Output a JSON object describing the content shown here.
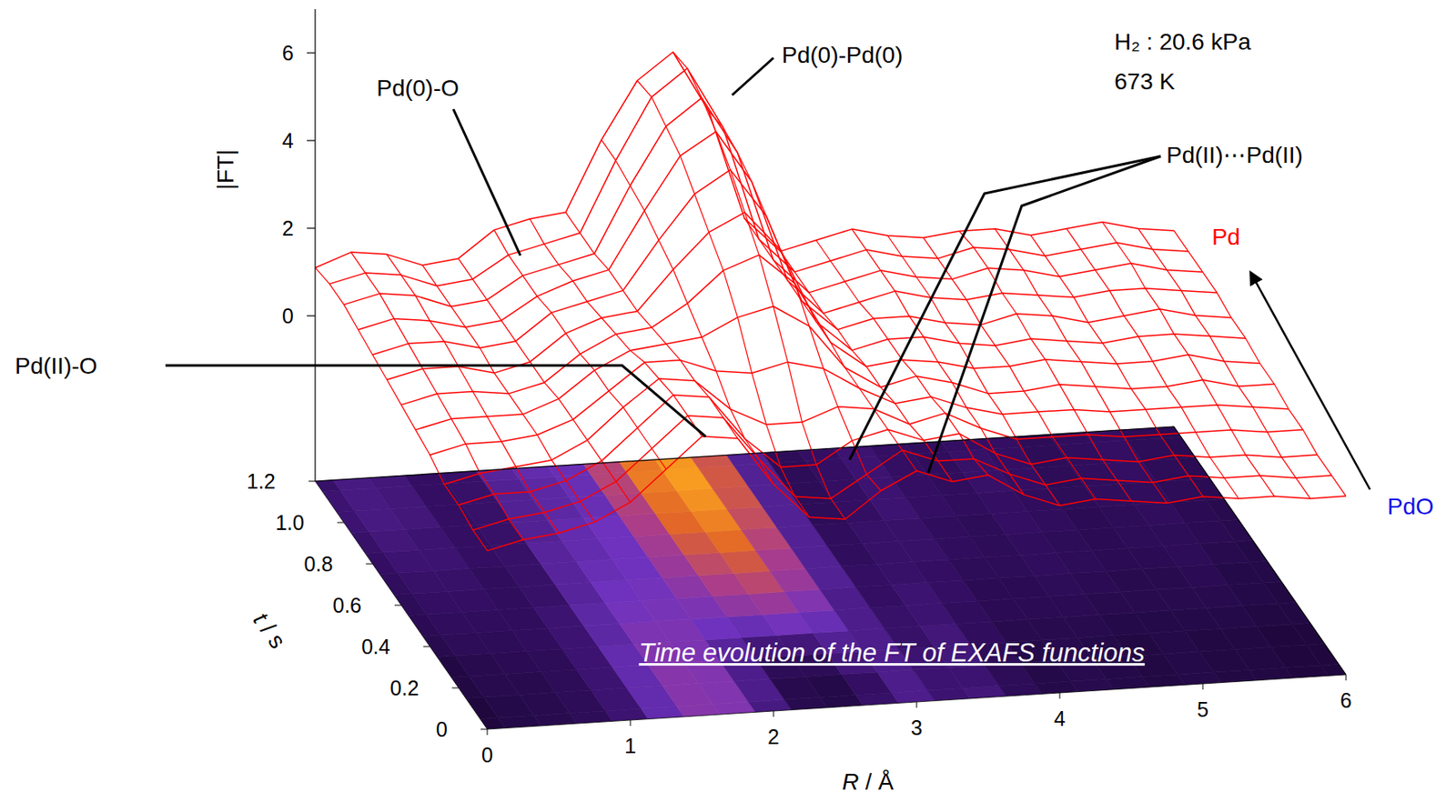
{
  "chart_data": {
    "type": "surface",
    "x_label": "R / Å",
    "y_label": "t / s",
    "z_label": "|FT|",
    "color": "#ff0000",
    "x": [
      0,
      0.25,
      0.5,
      0.75,
      1,
      1.25,
      1.5,
      1.75,
      2,
      2.25,
      2.5,
      2.75,
      3,
      3.25,
      3.5,
      3.75,
      4,
      4.25,
      4.5,
      4.75,
      5,
      5.25,
      5.5,
      5.75,
      6
    ],
    "y": [
      0,
      0.1,
      0.2,
      0.3,
      0.4,
      0.5,
      0.6,
      0.7,
      0.8,
      0.9,
      1,
      1.1,
      1.2
    ],
    "values": [
      [
        0.3,
        0.5,
        0.6,
        0.8,
        1.2,
        1.9,
        2.6,
        2.5,
        1.4,
        0.6,
        0.5,
        1.1,
        1.5,
        1.2,
        1.3,
        0.8,
        0.5,
        0.6,
        0.5,
        0.4,
        0.5,
        0.4,
        0.4,
        0.3,
        0.3
      ],
      [
        0.3,
        0.5,
        0.6,
        0.8,
        1.2,
        1.9,
        2.6,
        2.5,
        1.5,
        0.6,
        0.5,
        1.0,
        1.5,
        1.2,
        1.2,
        0.8,
        0.5,
        0.6,
        0.5,
        0.4,
        0.5,
        0.4,
        0.4,
        0.3,
        0.3
      ],
      [
        0.4,
        0.6,
        0.6,
        0.8,
        1.2,
        1.9,
        2.6,
        2.5,
        1.5,
        0.8,
        0.8,
        1.3,
        1.5,
        1.2,
        1.3,
        0.8,
        0.5,
        0.6,
        0.5,
        0.4,
        0.5,
        0.4,
        0.4,
        0.3,
        0.3
      ],
      [
        0.4,
        0.6,
        0.7,
        0.8,
        1.2,
        1.9,
        2.5,
        2.4,
        1.7,
        1.3,
        1.3,
        1.6,
        1.5,
        1.1,
        1.3,
        0.9,
        0.6,
        0.6,
        0.6,
        0.5,
        0.5,
        0.5,
        0.5,
        0.4,
        0.4
      ],
      [
        0.6,
        0.8,
        0.8,
        0.9,
        1.2,
        1.8,
        2.4,
        2.4,
        2.1,
        2.0,
        2.2,
        2.0,
        1.5,
        1.1,
        1.2,
        0.9,
        0.7,
        0.7,
        0.7,
        0.6,
        0.6,
        0.6,
        0.6,
        0.5,
        0.4
      ],
      [
        0.7,
        0.9,
        0.9,
        0.9,
        1.2,
        1.8,
        2.2,
        2.3,
        2.4,
        2.8,
        3.0,
        2.5,
        1.5,
        1.0,
        1.2,
        1.0,
        0.7,
        0.7,
        0.8,
        0.7,
        0.6,
        0.6,
        0.7,
        0.5,
        0.5
      ],
      [
        0.8,
        1.0,
        1.0,
        0.9,
        1.1,
        1.7,
        2.1,
        2.2,
        2.7,
        3.4,
        3.7,
        3.0,
        1.6,
        1.0,
        1.1,
        1.0,
        0.8,
        0.8,
        0.9,
        0.8,
        0.7,
        0.7,
        0.8,
        0.6,
        0.5
      ],
      [
        0.9,
        1.1,
        1.1,
        0.9,
        1.1,
        1.7,
        2.0,
        2.1,
        3.0,
        3.8,
        4.2,
        3.3,
        1.6,
        0.9,
        1.1,
        1.1,
        0.9,
        0.8,
        0.9,
        0.8,
        0.7,
        0.8,
        0.8,
        0.7,
        0.6
      ],
      [
        1.0,
        1.2,
        1.2,
        1.0,
        1.1,
        1.7,
        1.9,
        2.1,
        3.2,
        4.2,
        4.7,
        3.6,
        1.6,
        0.9,
        1.1,
        1.1,
        0.9,
        0.8,
        1.0,
        0.9,
        0.7,
        0.8,
        0.9,
        0.7,
        0.6
      ],
      [
        1.1,
        1.3,
        1.2,
        1.0,
        1.1,
        1.6,
        1.9,
        2.1,
        3.4,
        4.6,
        5.1,
        3.9,
        1.6,
        0.8,
        1.0,
        1.2,
        1.0,
        0.9,
        1.0,
        0.9,
        0.8,
        0.9,
        0.9,
        0.8,
        0.7
      ],
      [
        1.2,
        1.4,
        1.3,
        1.0,
        1.1,
        1.6,
        1.8,
        2.0,
        3.5,
        4.8,
        5.4,
        4.1,
        1.6,
        0.8,
        1.0,
        1.2,
        1.0,
        0.9,
        1.1,
        1.0,
        0.8,
        0.9,
        1.0,
        0.8,
        0.7
      ],
      [
        1.2,
        1.4,
        1.3,
        1.0,
        1.1,
        1.6,
        1.8,
        2.0,
        3.6,
        5.0,
        5.6,
        4.2,
        1.6,
        0.8,
        1.0,
        1.2,
        1.0,
        0.9,
        1.1,
        1.0,
        0.8,
        0.9,
        1.0,
        0.8,
        0.7
      ],
      [
        1.1,
        1.4,
        1.3,
        1.0,
        1.1,
        1.7,
        1.9,
        2.0,
        3.6,
        4.9,
        5.5,
        4.1,
        1.6,
        0.8,
        1.0,
        1.2,
        1.0,
        0.9,
        1.0,
        1.0,
        0.8,
        0.9,
        1.0,
        0.8,
        0.7
      ]
    ],
    "xlim": [
      0,
      6
    ],
    "ylim": [
      0,
      1.2
    ],
    "zlim": [
      0,
      7
    ],
    "xticks": [
      0,
      1,
      2,
      3,
      4,
      5,
      6
    ],
    "yticks": [
      0,
      0.2,
      0.4,
      0.6,
      0.8,
      {
        "value": 1,
        "label": "1.0"
      },
      1.2
    ],
    "zticks": [
      0,
      2,
      4,
      6
    ],
    "annotations": [
      "Pd(0)-O",
      "Pd(0)-Pd(0)",
      "Pd(II)-O",
      "Pd(II)⋯Pd(II)"
    ],
    "conditions": [
      "H₂ : 20.6 kPa",
      "673 K"
    ],
    "direction_labels": [
      "PdO",
      "Pd"
    ],
    "caption": "Time evolution of the FT of EXAFS functions"
  }
}
